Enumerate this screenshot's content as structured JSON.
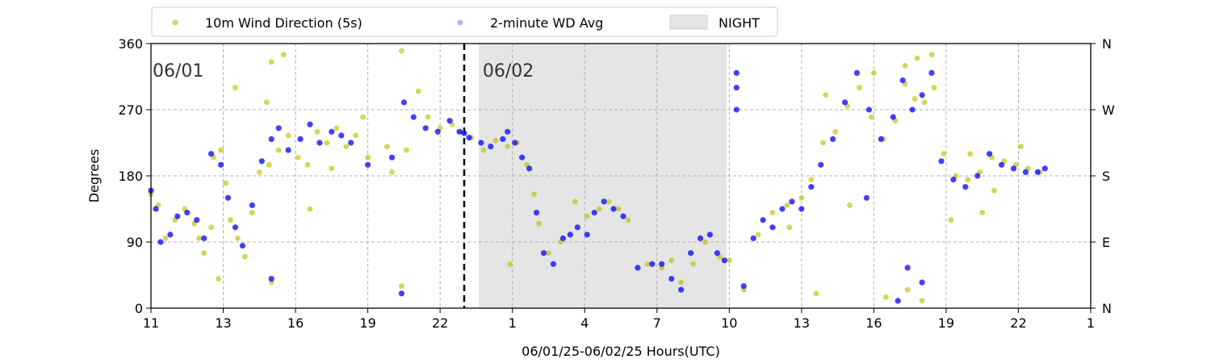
{
  "chart_data": {
    "type": "scatter",
    "title": "",
    "xlabel": "06/01/25-06/02/25  Hours(UTC)",
    "ylabel": "Degrees",
    "x_ticks": [
      {
        "hour": 0,
        "label": "11"
      },
      {
        "hour": 3,
        "label": "13"
      },
      {
        "hour": 6,
        "label": "16"
      },
      {
        "hour": 9,
        "label": "19"
      },
      {
        "hour": 12,
        "label": "22"
      },
      {
        "hour": 15,
        "label": "1"
      },
      {
        "hour": 18,
        "label": "4"
      },
      {
        "hour": 21,
        "label": "7"
      },
      {
        "hour": 24,
        "label": "10"
      },
      {
        "hour": 27,
        "label": "13"
      },
      {
        "hour": 30,
        "label": "16"
      },
      {
        "hour": 33,
        "label": "19"
      },
      {
        "hour": 36,
        "label": "22"
      },
      {
        "hour": 39,
        "label": "1"
      }
    ],
    "xlim": [
      0,
      39
    ],
    "ylim": [
      0,
      360
    ],
    "y_ticks": [
      "0",
      "90",
      "180",
      "270",
      "360"
    ],
    "y_right_ticks": [
      "N",
      "E",
      "S",
      "W",
      "N"
    ],
    "grid": true,
    "legend_position": "top",
    "date_labels": [
      {
        "hour": 0,
        "text": "06/01"
      },
      {
        "hour": 13.7,
        "text": "06/02"
      }
    ],
    "day_boundary_hour": 13.0,
    "night_span": [
      13.6,
      23.9
    ],
    "series": [
      {
        "name": "10m Wind Direction (5s)",
        "color": "#bfbf00",
        "points": [
          [
            0.0,
            155
          ],
          [
            0.3,
            140
          ],
          [
            0.6,
            95
          ],
          [
            1.0,
            120
          ],
          [
            1.4,
            135
          ],
          [
            1.8,
            115
          ],
          [
            2.0,
            95
          ],
          [
            2.2,
            75
          ],
          [
            2.5,
            110
          ],
          [
            2.6,
            205
          ],
          [
            2.9,
            215
          ],
          [
            3.1,
            170
          ],
          [
            3.3,
            120
          ],
          [
            3.6,
            95
          ],
          [
            3.9,
            70
          ],
          [
            4.2,
            130
          ],
          [
            4.5,
            185
          ],
          [
            4.9,
            195
          ],
          [
            5.3,
            215
          ],
          [
            5.7,
            235
          ],
          [
            6.1,
            205
          ],
          [
            6.5,
            195
          ],
          [
            6.9,
            240
          ],
          [
            7.3,
            225
          ],
          [
            7.7,
            245
          ],
          [
            8.1,
            220
          ],
          [
            8.5,
            235
          ],
          [
            9.0,
            205
          ],
          [
            10.0,
            185
          ],
          [
            10.6,
            215
          ],
          [
            11.1,
            295
          ],
          [
            11.5,
            260
          ],
          [
            12.0,
            245
          ],
          [
            12.5,
            250
          ],
          [
            12.9,
            240
          ],
          [
            13.3,
            232
          ],
          [
            13.8,
            215
          ],
          [
            14.3,
            228
          ],
          [
            14.8,
            220
          ],
          [
            15.2,
            225
          ],
          [
            15.6,
            195
          ],
          [
            15.9,
            155
          ],
          [
            16.1,
            115
          ],
          [
            16.5,
            75
          ],
          [
            17.0,
            90
          ],
          [
            17.6,
            145
          ],
          [
            18.1,
            125
          ],
          [
            18.6,
            135
          ],
          [
            19.0,
            145
          ],
          [
            19.4,
            135
          ],
          [
            19.8,
            120
          ],
          [
            20.6,
            60
          ],
          [
            21.2,
            55
          ],
          [
            21.6,
            65
          ],
          [
            22.0,
            35
          ],
          [
            22.5,
            60
          ],
          [
            23.0,
            90
          ],
          [
            23.6,
            70
          ],
          [
            24.0,
            65
          ],
          [
            24.6,
            25
          ],
          [
            25.2,
            100
          ],
          [
            25.8,
            130
          ],
          [
            26.4,
            140
          ],
          [
            27.0,
            150
          ],
          [
            27.4,
            175
          ],
          [
            27.9,
            225
          ],
          [
            28.4,
            240
          ],
          [
            28.9,
            275
          ],
          [
            29.4,
            300
          ],
          [
            29.9,
            260
          ],
          [
            30.4,
            230
          ],
          [
            30.9,
            255
          ],
          [
            31.3,
            305
          ],
          [
            31.7,
            285
          ],
          [
            32.1,
            280
          ],
          [
            32.5,
            300
          ],
          [
            32.9,
            210
          ],
          [
            33.4,
            180
          ],
          [
            33.9,
            175
          ],
          [
            34.4,
            185
          ],
          [
            34.9,
            205
          ],
          [
            35.4,
            200
          ],
          [
            35.9,
            195
          ],
          [
            36.4,
            190
          ],
          [
            36.9,
            185
          ],
          [
            14.9,
            60
          ],
          [
            5.0,
            335
          ],
          [
            5.5,
            345
          ],
          [
            10.4,
            350
          ],
          [
            31.3,
            330
          ],
          [
            31.8,
            340
          ],
          [
            32.4,
            345
          ],
          [
            10.4,
            30
          ],
          [
            5.0,
            35
          ],
          [
            27.6,
            20
          ],
          [
            30.5,
            15
          ],
          [
            31.4,
            25
          ],
          [
            32.0,
            10
          ],
          [
            3.5,
            300
          ],
          [
            4.8,
            280
          ],
          [
            9.8,
            220
          ],
          [
            26.5,
            110
          ],
          [
            28.0,
            290
          ],
          [
            33.2,
            120
          ],
          [
            29.0,
            140
          ],
          [
            6.6,
            135
          ],
          [
            7.5,
            190
          ],
          [
            8.8,
            260
          ],
          [
            34.5,
            130
          ],
          [
            36.1,
            220
          ],
          [
            34.0,
            210
          ],
          [
            35.0,
            160
          ],
          [
            2.8,
            40
          ],
          [
            30.0,
            320
          ]
        ]
      },
      {
        "name": "2-minute WD Avg",
        "color": "#0000ff",
        "points": [
          [
            0.0,
            160
          ],
          [
            0.2,
            135
          ],
          [
            0.4,
            90
          ],
          [
            0.8,
            100
          ],
          [
            1.1,
            125
          ],
          [
            1.5,
            130
          ],
          [
            1.9,
            120
          ],
          [
            2.2,
            95
          ],
          [
            2.5,
            210
          ],
          [
            2.9,
            195
          ],
          [
            3.2,
            150
          ],
          [
            3.5,
            110
          ],
          [
            3.8,
            85
          ],
          [
            4.2,
            140
          ],
          [
            4.6,
            200
          ],
          [
            5.0,
            230
          ],
          [
            5.3,
            245
          ],
          [
            5.7,
            215
          ],
          [
            6.2,
            230
          ],
          [
            6.6,
            250
          ],
          [
            7.0,
            225
          ],
          [
            7.5,
            240
          ],
          [
            7.9,
            235
          ],
          [
            8.3,
            225
          ],
          [
            9.0,
            195
          ],
          [
            10.0,
            205
          ],
          [
            10.5,
            280
          ],
          [
            10.9,
            260
          ],
          [
            11.4,
            245
          ],
          [
            11.9,
            240
          ],
          [
            12.4,
            255
          ],
          [
            12.8,
            240
          ],
          [
            13.2,
            232
          ],
          [
            13.7,
            225
          ],
          [
            14.1,
            220
          ],
          [
            14.6,
            230
          ],
          [
            15.1,
            225
          ],
          [
            15.4,
            205
          ],
          [
            15.7,
            190
          ],
          [
            16.0,
            130
          ],
          [
            16.3,
            75
          ],
          [
            16.7,
            60
          ],
          [
            17.1,
            95
          ],
          [
            17.4,
            100
          ],
          [
            17.7,
            110
          ],
          [
            18.1,
            100
          ],
          [
            18.4,
            130
          ],
          [
            18.8,
            145
          ],
          [
            19.2,
            135
          ],
          [
            19.6,
            125
          ],
          [
            20.2,
            55
          ],
          [
            20.8,
            60
          ],
          [
            21.2,
            60
          ],
          [
            21.6,
            40
          ],
          [
            22.0,
            25
          ],
          [
            22.4,
            75
          ],
          [
            22.8,
            95
          ],
          [
            23.2,
            100
          ],
          [
            23.5,
            75
          ],
          [
            23.8,
            65
          ],
          [
            24.3,
            270
          ],
          [
            24.6,
            30
          ],
          [
            25.0,
            95
          ],
          [
            25.4,
            120
          ],
          [
            25.8,
            110
          ],
          [
            26.2,
            135
          ],
          [
            26.6,
            145
          ],
          [
            27.0,
            135
          ],
          [
            27.4,
            165
          ],
          [
            27.8,
            195
          ],
          [
            28.3,
            230
          ],
          [
            28.8,
            280
          ],
          [
            29.3,
            320
          ],
          [
            29.8,
            270
          ],
          [
            30.3,
            230
          ],
          [
            30.8,
            260
          ],
          [
            31.2,
            310
          ],
          [
            31.6,
            270
          ],
          [
            32.0,
            290
          ],
          [
            32.4,
            320
          ],
          [
            32.8,
            200
          ],
          [
            33.3,
            175
          ],
          [
            33.8,
            165
          ],
          [
            34.3,
            180
          ],
          [
            34.8,
            210
          ],
          [
            35.3,
            195
          ],
          [
            35.8,
            190
          ],
          [
            36.3,
            185
          ],
          [
            36.8,
            185
          ],
          [
            37.1,
            190
          ],
          [
            5.0,
            40
          ],
          [
            10.4,
            20
          ],
          [
            14.8,
            240
          ],
          [
            29.7,
            150
          ],
          [
            31.4,
            55
          ],
          [
            32.0,
            35
          ],
          [
            31.0,
            10
          ],
          [
            13.0,
            238
          ],
          [
            24.3,
            320
          ],
          [
            24.3,
            300
          ]
        ]
      }
    ],
    "night_legend": "NIGHT"
  }
}
